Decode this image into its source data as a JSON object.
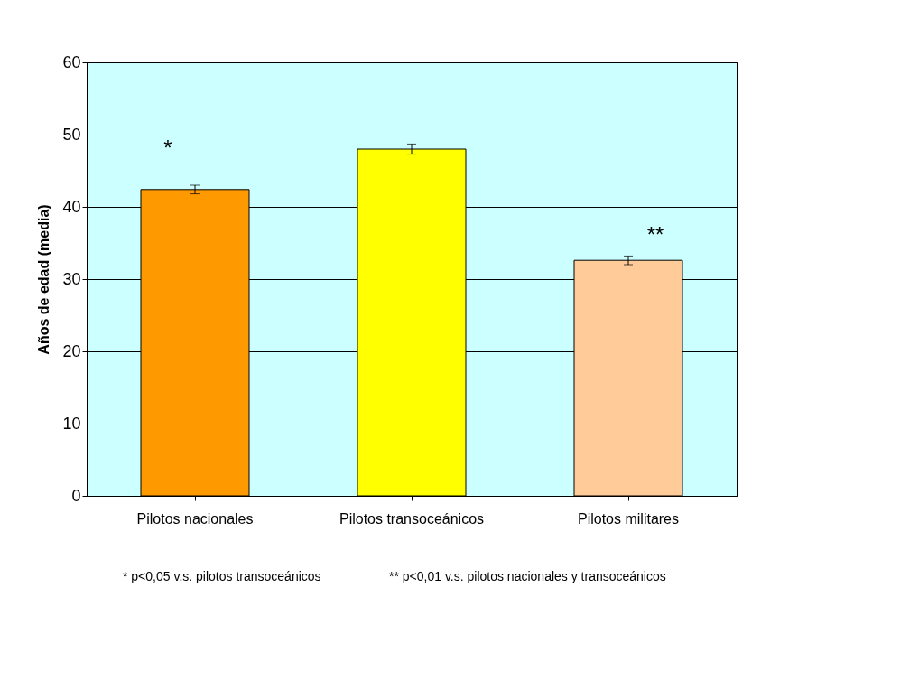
{
  "chart_data": {
    "type": "bar",
    "ylabel": "Años de edad (media)",
    "categories": [
      "Pilotos nacionales",
      "Pilotos transoceánicos",
      "Pilotos militares"
    ],
    "values": [
      42.4,
      48.0,
      32.6
    ],
    "colors": [
      "#ff9900",
      "#ffff00",
      "#ffcc99"
    ],
    "errors": [
      0.6,
      0.7,
      0.6
    ],
    "ylim": [
      0,
      60
    ],
    "yticks": [
      0,
      10,
      20,
      30,
      40,
      50,
      60
    ],
    "grid": "y",
    "annotations": [
      "*",
      "**",
      "* p<0,05 v.s. pilotos transoceánicos",
      "** p<0,01 v.s. pilotos nacionales y transoceánicos"
    ]
  }
}
